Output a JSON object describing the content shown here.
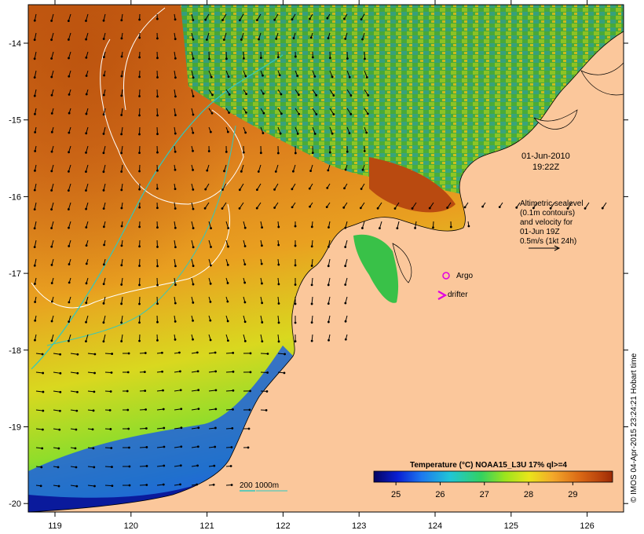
{
  "map": {
    "timestamp_line1": "01-Jun-2010",
    "timestamp_line2": "19:22Z",
    "altimetry_note": [
      "Altimetric sealevel",
      "(0.1m contours)",
      "and velocity for",
      "01-Jun 19Z",
      "0.5m/s (1kt 24h)"
    ],
    "legend_argo": "Argo",
    "legend_drifter": "drifter",
    "depth_label": "200  1000m",
    "credit": "© IMOS 04-Apr-2015 23:24:21 Hobart time",
    "colorbar": {
      "title": "Temperature (°C) NOAA15_L3U 17% ql>=4",
      "ticks": [
        "25",
        "26",
        "27",
        "28",
        "29"
      ],
      "range": [
        24.5,
        29.9
      ]
    },
    "x_ticks": [
      "119",
      "120",
      "121",
      "122",
      "123",
      "124",
      "125",
      "126"
    ],
    "y_ticks": [
      "-14",
      "-15",
      "-16",
      "-17",
      "-18",
      "-19",
      "-20"
    ],
    "colors": {
      "land": "#fbc79b",
      "contour_line": "#ffffff",
      "depth_line": "#2ec9c0",
      "argo_marker": "#e100e1",
      "drifter_marker": "#e100e1"
    }
  }
}
